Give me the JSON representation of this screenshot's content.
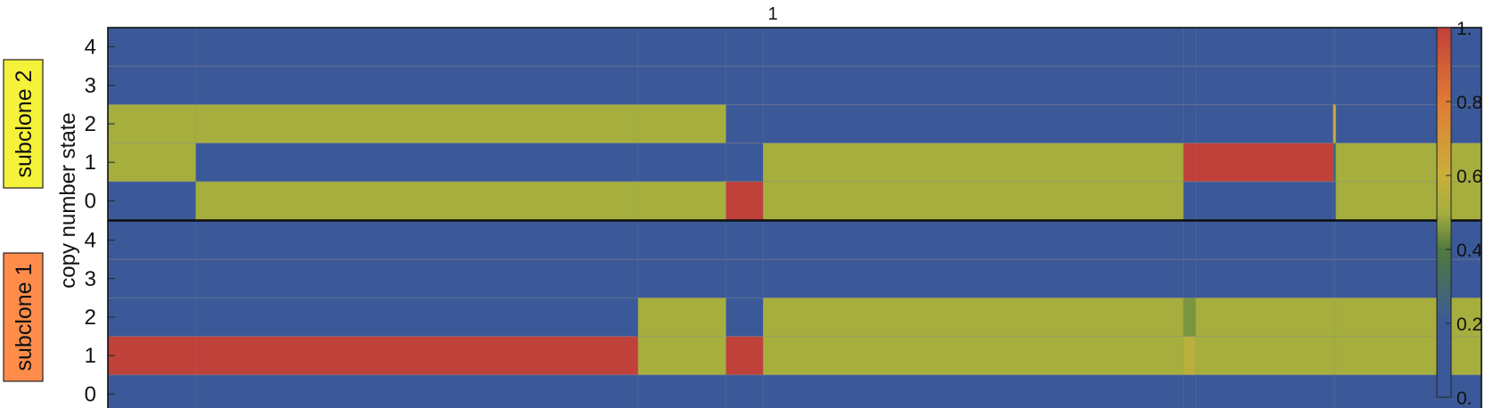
{
  "chart_data": {
    "type": "heatmap",
    "title": "1",
    "ylabel": "copy number state",
    "clim": [
      0,
      1
    ],
    "colorbar_ticks": [
      "0.",
      "0.2",
      "0.4",
      "0.6",
      "0.8",
      "1."
    ],
    "states": [
      "0",
      "1",
      "2",
      "3",
      "4"
    ],
    "segment_boundaries": [
      0,
      0.064,
      0.386,
      0.45,
      0.477,
      0.783,
      0.792,
      0.892,
      0.894,
      1.0
    ],
    "panels": [
      {
        "name": "subclone 2",
        "label_color": "#f5f23a",
        "rows": [
          {
            "state": "4",
            "values": [
              0,
              0,
              0,
              0,
              0,
              0,
              0,
              0,
              0
            ]
          },
          {
            "state": "3",
            "values": [
              0,
              0,
              0,
              0,
              0,
              0,
              0,
              0.05,
              0
            ]
          },
          {
            "state": "2",
            "values": [
              0.5,
              0.5,
              0.5,
              0,
              0,
              0,
              0,
              0.62,
              0
            ]
          },
          {
            "state": "1",
            "values": [
              0.5,
              0,
              0,
              0,
              0.5,
              1,
              1,
              0.3,
              0.5
            ]
          },
          {
            "state": "0",
            "values": [
              0,
              0.5,
              0.5,
              1,
              0.5,
              0,
              0,
              0,
              0.5
            ]
          }
        ]
      },
      {
        "name": "subclone 1",
        "label_color": "#ff8c4a",
        "rows": [
          {
            "state": "4",
            "values": [
              0,
              0,
              0,
              0,
              0,
              0,
              0,
              0,
              0
            ]
          },
          {
            "state": "3",
            "values": [
              0,
              0,
              0,
              0,
              0,
              0,
              0,
              0,
              0
            ]
          },
          {
            "state": "2",
            "values": [
              0,
              0,
              0.5,
              0,
              0.5,
              0.45,
              0.5,
              0.5,
              0.5
            ]
          },
          {
            "state": "1",
            "values": [
              1,
              1,
              0.5,
              1,
              0.5,
              0.55,
              0.5,
              0.5,
              0.5
            ]
          },
          {
            "state": "0",
            "values": [
              0,
              0,
              0,
              0,
              0,
              0,
              0,
              0,
              0
            ]
          }
        ]
      }
    ]
  }
}
